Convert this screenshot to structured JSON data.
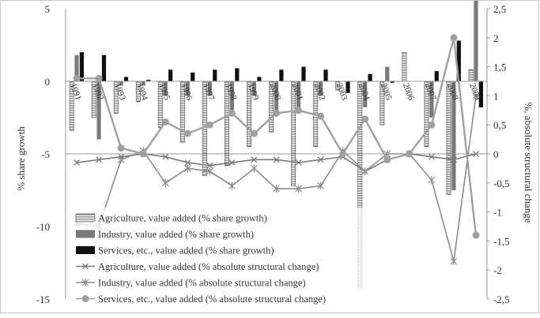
{
  "chart_data": {
    "type": "bar",
    "title": "",
    "categories": [
      "1991",
      "1992",
      "1993",
      "1994",
      "1995",
      "1996",
      "1997",
      "1998",
      "1999",
      "2000",
      "2001",
      "2002",
      "2003",
      "2004",
      "2005",
      "2006",
      "2007",
      "2008",
      "2009"
    ],
    "y_left": {
      "label": "% share growth",
      "range": [
        -15,
        5
      ],
      "ticks": [
        "5",
        "0",
        "-5",
        "-10",
        "-15"
      ],
      "tick_values": [
        5,
        0,
        -5,
        -10,
        -15
      ]
    },
    "y_right": {
      "label": "%, absolute structural change",
      "range": [
        -2.5,
        2.5
      ],
      "ticks": [
        "2,5",
        "2",
        "1,5",
        "1",
        "0,5",
        "0",
        "-0,5",
        "-1",
        "-1,5",
        "-2",
        "-2,5"
      ],
      "tick_values": [
        2.5,
        2,
        1.5,
        1,
        0.5,
        0,
        -0.5,
        -1,
        -1.5,
        -2,
        -2.5
      ]
    },
    "gridlines": false,
    "legend_position": "bottom-left",
    "series": [
      {
        "name": "Agriculture, value added (% share growth)",
        "axis": "left",
        "kind": "bar",
        "color": "#d8d8d8",
        "values": [
          -3.4,
          -2.5,
          -2.2,
          -1.4,
          -3.2,
          -4.2,
          -6.5,
          -5.8,
          -4.5,
          -3.5,
          -7.2,
          -4.5,
          -0.6,
          -14.2,
          -3.0,
          2.0,
          -4.5,
          -7.8,
          0.8
        ]
      },
      {
        "name": "Industry, value added (% share growth)",
        "axis": "left",
        "kind": "bar",
        "color": "#7a7a7a",
        "values": [
          1.8,
          -4.0,
          -0.3,
          -0.3,
          -1.0,
          -1.0,
          -1.0,
          -2.0,
          -1.0,
          -2.0,
          -2.0,
          -1.0,
          0.0,
          -1.8,
          1.0,
          0.0,
          -2.5,
          -7.5,
          5.8
        ]
      },
      {
        "name": "Services, etc., value added (% share growth)",
        "axis": "left",
        "kind": "bar",
        "color": "#111111",
        "values": [
          2.0,
          1.8,
          0.3,
          0.1,
          0.8,
          0.6,
          0.8,
          0.9,
          0.3,
          0.8,
          1.0,
          0.8,
          -0.8,
          0.5,
          -0.1,
          0.0,
          0.7,
          2.8,
          -1.8
        ]
      },
      {
        "name": "Agriculture, value added (% absolute structural change)",
        "axis": "right",
        "kind": "line",
        "color": "#7a7a7a",
        "marker": "x",
        "values": [
          -0.15,
          -0.1,
          -0.05,
          0.0,
          -0.05,
          -0.15,
          -0.2,
          -0.15,
          -0.1,
          -0.1,
          -0.15,
          -0.1,
          -0.05,
          -0.3,
          -0.1,
          0.0,
          -0.05,
          -0.1,
          0.0
        ]
      },
      {
        "name": "Industry, value added (% absolute structural change)",
        "axis": "right",
        "kind": "line",
        "color": "#8c8c8c",
        "marker": "asterisk",
        "values": [
          -1.2,
          -1.25,
          -0.1,
          0.05,
          -0.5,
          -0.25,
          -0.3,
          -0.55,
          -0.25,
          -0.6,
          -0.6,
          -0.55,
          0.05,
          -0.3,
          0.0,
          0.0,
          -0.45,
          -1.85,
          1.0
        ]
      },
      {
        "name": "Services, etc., value added (% absolute structural change)",
        "axis": "right",
        "kind": "line",
        "color": "#a0a0a0",
        "marker": "circle",
        "values": [
          1.3,
          1.3,
          0.1,
          0.0,
          0.55,
          0.35,
          0.5,
          0.7,
          0.35,
          0.7,
          0.75,
          0.65,
          0.0,
          0.6,
          -0.1,
          0.0,
          0.5,
          2.0,
          -1.4
        ]
      }
    ]
  }
}
